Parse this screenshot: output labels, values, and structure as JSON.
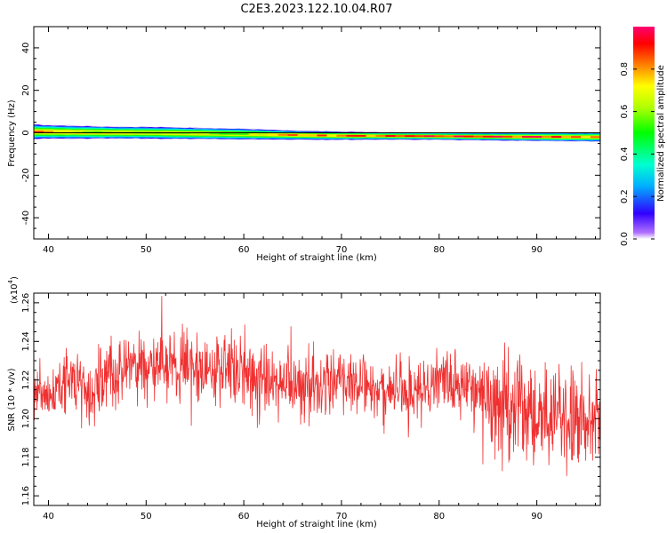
{
  "title": "C2E3.2023.122.10.04.R07",
  "chart_data": [
    {
      "type": "heatmap",
      "xlabel": "Height of straight line (km)",
      "ylabel": "Frequency (Hz)",
      "xlim": [
        38.5,
        96.5
      ],
      "ylim": [
        -50,
        50
      ],
      "xticks": [
        40,
        50,
        60,
        70,
        80,
        90
      ],
      "yticks": [
        40,
        20,
        0,
        -20,
        -40
      ],
      "ytick_labels": [
        "40",
        "20",
        "0",
        "-20",
        "-40"
      ],
      "band": [
        {
          "x": 39,
          "center": 0.5,
          "halfwidth": 3.5,
          "peak": 0.85
        },
        {
          "x": 42,
          "center": 0.3,
          "halfwidth": 3.3,
          "peak": 0.6
        },
        {
          "x": 46,
          "center": 0.1,
          "halfwidth": 3.0,
          "peak": 0.55
        },
        {
          "x": 50,
          "center": 0.0,
          "halfwidth": 2.9,
          "peak": 0.55
        },
        {
          "x": 55,
          "center": -0.3,
          "halfwidth": 2.8,
          "peak": 0.6
        },
        {
          "x": 60,
          "center": -0.6,
          "halfwidth": 2.6,
          "peak": 0.6
        },
        {
          "x": 65,
          "center": -1.1,
          "halfwidth": 2.2,
          "peak": 0.85
        },
        {
          "x": 70,
          "center": -1.4,
          "halfwidth": 2.0,
          "peak": 0.85
        },
        {
          "x": 75,
          "center": -1.5,
          "halfwidth": 1.8,
          "peak": 0.9
        },
        {
          "x": 80,
          "center": -1.6,
          "halfwidth": 1.8,
          "peak": 0.95
        },
        {
          "x": 85,
          "center": -1.8,
          "halfwidth": 1.9,
          "peak": 0.9
        },
        {
          "x": 90,
          "center": -1.9,
          "halfwidth": 2.0,
          "peak": 0.9
        },
        {
          "x": 95.5,
          "center": -2.0,
          "halfwidth": 2.2,
          "peak": 0.85
        }
      ],
      "colorbar": {
        "label": "Normalized spectral amplitude",
        "range": [
          0,
          1
        ],
        "ticks": [
          "0.0",
          "0.2",
          "0.4",
          "0.6",
          "0.8"
        ],
        "tick_values": [
          0,
          0.2,
          0.4,
          0.6,
          0.8
        ]
      }
    },
    {
      "type": "line",
      "xlabel": "Height of straight line (km)",
      "ylabel": "SNR (10 * v/v)",
      "y_multiplier_label": "(x10",
      "y_multiplier_exp": "4",
      "y_multiplier_close": ")",
      "xlim": [
        38.5,
        96.5
      ],
      "ylim": [
        1.155,
        1.265
      ],
      "xticks": [
        40,
        50,
        60,
        70,
        80,
        90
      ],
      "yticks": [
        1.16,
        1.18,
        1.2,
        1.22,
        1.24,
        1.26
      ],
      "ytick_labels": [
        "1.16",
        "1.18",
        "1.20",
        "1.22",
        "1.24",
        "1.26"
      ],
      "series": [
        {
          "color": "#f03030",
          "trend": {
            "x": [
              38.5,
              40,
              42,
              44,
              46,
              48,
              50,
              52,
              54,
              56,
              58,
              60,
              62,
              64,
              66,
              68,
              70,
              72,
              74,
              76,
              78,
              80,
              82,
              84,
              86,
              88,
              90,
              92,
              94,
              96.5
            ],
            "y": [
              1.215,
              1.21,
              1.22,
              1.215,
              1.222,
              1.226,
              1.228,
              1.228,
              1.227,
              1.225,
              1.224,
              1.222,
              1.22,
              1.22,
              1.218,
              1.22,
              1.22,
              1.218,
              1.215,
              1.216,
              1.218,
              1.218,
              1.22,
              1.216,
              1.205,
              1.205,
              1.2,
              1.205,
              1.2,
              1.205
            ]
          },
          "noise_amplitude": 0.016,
          "points": 1400
        }
      ]
    }
  ]
}
